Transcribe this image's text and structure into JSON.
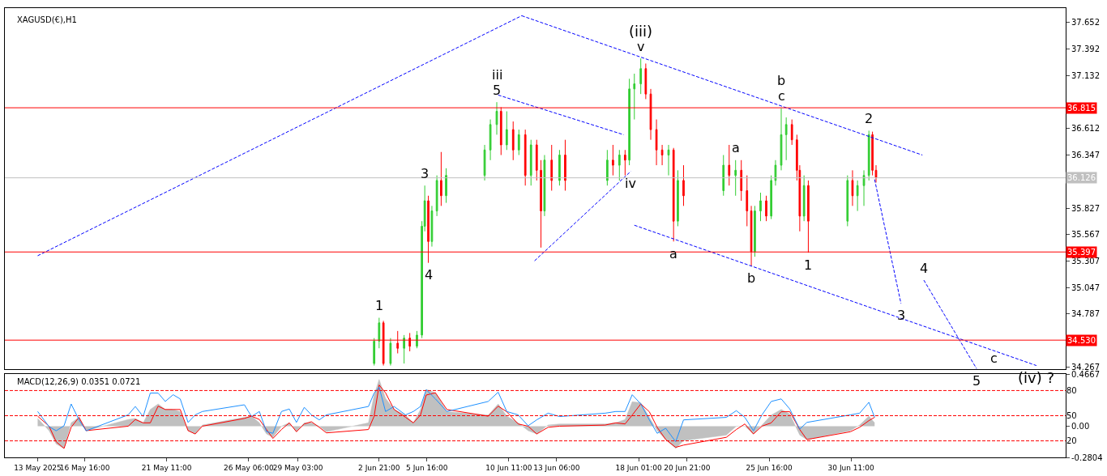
{
  "chart_data": [
    {
      "type": "candlestick",
      "title": "XAGUSD(€),H1",
      "tick_labels": "y",
      "x": [
        "2025-06-02T14:00",
        "2025-06-02T21:00",
        "2025-06-03T03:00",
        "2025-06-03T13:00",
        "2025-06-03T23:00",
        "2025-06-04T08:00",
        "2025-06-04T16:00",
        "2025-06-05T02:00",
        "2025-06-05T09:00",
        "2025-06-05T13:00",
        "2025-06-05T18:00",
        "2025-06-05T23:00",
        "2025-06-06T06:00",
        "2025-06-06T12:00",
        "2025-06-06T19:00",
        "2025-06-09T01:00",
        "2025-06-09T09:00",
        "2025-06-09T18:00",
        "2025-06-10T00:00",
        "2025-06-10T08:00",
        "2025-06-10T17:00",
        "2025-06-11T01:00",
        "2025-06-11T10:00",
        "2025-06-11T18:00",
        "2025-06-12T02:00",
        "2025-06-12T08:00",
        "2025-06-12T13:00",
        "2025-06-12T23:00",
        "2025-06-13T10:00",
        "2025-06-13T18:00",
        "2025-06-16T05:00",
        "2025-06-16T13:00",
        "2025-06-16T22:00",
        "2025-06-17T06:00",
        "2025-06-17T12:00",
        "2025-06-17T19:00",
        "2025-06-18T04:00",
        "2025-06-18T11:00",
        "2025-06-18T18:00",
        "2025-06-19T02:00",
        "2025-06-19T10:00",
        "2025-06-19T19:00",
        "2025-06-20T02:00",
        "2025-06-20T08:00",
        "2025-06-20T16:00",
        "2025-06-23T00:00",
        "2025-06-23T08:00",
        "2025-06-23T17:00",
        "2025-06-24T01:00",
        "2025-06-24T09:00",
        "2025-06-24T15:00",
        "2025-06-24T20:00",
        "2025-06-25T04:00",
        "2025-06-25T12:00",
        "2025-06-25T19:00",
        "2025-06-26T01:00",
        "2025-06-26T09:00",
        "2025-06-26T16:00",
        "2025-06-27T00:00",
        "2025-06-27T07:00",
        "2025-06-27T11:00",
        "2025-06-27T17:00",
        "2025-06-27T23:00",
        "2025-06-30T06:00",
        "2025-06-30T13:00",
        "2025-06-30T20:00",
        "2025-07-01T05:00",
        "2025-07-01T12:00",
        "2025-07-01T17:00",
        "2025-07-01T22:00"
      ],
      "ohlc": [
        [
          34.3,
          34.55,
          34.28,
          34.52
        ],
        [
          34.52,
          34.75,
          34.45,
          34.7
        ],
        [
          34.7,
          34.72,
          34.28,
          34.3
        ],
        [
          34.3,
          34.55,
          34.28,
          34.5
        ],
        [
          34.5,
          34.62,
          34.4,
          34.45
        ],
        [
          34.45,
          34.58,
          34.3,
          34.55
        ],
        [
          34.55,
          34.6,
          34.42,
          34.47
        ],
        [
          34.47,
          34.62,
          34.45,
          34.58
        ],
        [
          34.58,
          35.7,
          34.55,
          35.65
        ],
        [
          35.65,
          36.05,
          35.6,
          35.9
        ],
        [
          35.9,
          35.95,
          35.29,
          35.5
        ],
        [
          35.5,
          35.85,
          35.45,
          35.8
        ],
        [
          35.8,
          36.15,
          35.75,
          36.1
        ],
        [
          36.1,
          36.38,
          35.85,
          35.95
        ],
        [
          35.95,
          36.22,
          35.88,
          36.15
        ],
        [
          36.15,
          36.45,
          36.1,
          36.4
        ],
        [
          36.4,
          36.7,
          36.3,
          36.65
        ],
        [
          36.65,
          36.87,
          36.55,
          36.78
        ],
        [
          36.78,
          36.82,
          36.35,
          36.45
        ],
        [
          36.45,
          36.78,
          36.4,
          36.6
        ],
        [
          36.6,
          36.68,
          36.3,
          36.4
        ],
        [
          36.4,
          36.6,
          36.35,
          36.55
        ],
        [
          36.55,
          36.6,
          36.05,
          36.15
        ],
        [
          36.15,
          36.5,
          36.05,
          36.45
        ],
        [
          36.45,
          36.5,
          36.1,
          36.2
        ],
        [
          36.2,
          36.3,
          35.44,
          35.8
        ],
        [
          35.8,
          36.35,
          35.75,
          36.3
        ],
        [
          36.3,
          36.45,
          36.0,
          36.1
        ],
        [
          36.1,
          36.4,
          36.05,
          36.35
        ],
        [
          36.35,
          36.5,
          36.0,
          36.1
        ],
        [
          36.1,
          36.4,
          36.05,
          36.3
        ],
        [
          36.3,
          36.45,
          36.15,
          36.25
        ],
        [
          36.25,
          36.4,
          36.1,
          36.35
        ],
        [
          36.35,
          36.4,
          36.15,
          36.3
        ],
        [
          36.3,
          37.1,
          36.25,
          37.0
        ],
        [
          37.0,
          37.15,
          36.7,
          37.05
        ],
        [
          37.05,
          37.3,
          36.95,
          37.2
        ],
        [
          37.2,
          37.25,
          36.9,
          36.95
        ],
        [
          36.95,
          37.0,
          36.5,
          36.6
        ],
        [
          36.6,
          36.7,
          36.25,
          36.4
        ],
        [
          36.4,
          36.45,
          36.25,
          36.35
        ],
        [
          36.35,
          36.45,
          36.15,
          36.4
        ],
        [
          36.4,
          36.42,
          35.5,
          35.7
        ],
        [
          35.7,
          36.2,
          35.65,
          36.1
        ],
        [
          36.1,
          36.25,
          35.85,
          35.95
        ],
        [
          36.0,
          36.35,
          35.95,
          36.25
        ],
        [
          36.25,
          36.45,
          36.05,
          36.15
        ],
        [
          36.15,
          36.3,
          35.95,
          36.2
        ],
        [
          36.2,
          36.3,
          35.9,
          36.0
        ],
        [
          36.0,
          36.15,
          35.65,
          35.8
        ],
        [
          35.8,
          35.85,
          35.26,
          35.4
        ],
        [
          35.4,
          35.85,
          35.35,
          35.8
        ],
        [
          35.8,
          35.98,
          35.7,
          35.9
        ],
        [
          35.9,
          35.95,
          35.7,
          35.75
        ],
        [
          35.75,
          36.15,
          35.72,
          36.1
        ],
        [
          36.1,
          36.3,
          36.05,
          36.25
        ],
        [
          36.25,
          36.81,
          36.2,
          36.55
        ],
        [
          36.55,
          36.72,
          36.3,
          36.65
        ],
        [
          36.65,
          36.7,
          36.45,
          36.5
        ],
        [
          36.5,
          36.55,
          36.1,
          36.2
        ],
        [
          36.2,
          36.25,
          35.6,
          35.75
        ],
        [
          35.75,
          36.15,
          35.7,
          36.05
        ],
        [
          36.05,
          36.1,
          35.39,
          35.7
        ],
        [
          35.7,
          36.15,
          35.65,
          36.1
        ],
        [
          36.1,
          36.2,
          35.85,
          35.95
        ],
        [
          35.95,
          36.1,
          35.8,
          36.05
        ],
        [
          36.05,
          36.2,
          35.85,
          36.15
        ],
        [
          36.15,
          36.59,
          36.1,
          36.55
        ],
        [
          36.55,
          36.58,
          36.15,
          36.2
        ],
        [
          36.2,
          36.25,
          36.08,
          36.13
        ]
      ],
      "colors": [
        "#32cd32",
        "#32cd32",
        "#ff0000",
        "#32cd32",
        "#ff0000",
        "#32cd32",
        "#ff0000",
        "#32cd32",
        "#32cd32",
        "#32cd32",
        "#ff0000",
        "#32cd32",
        "#32cd32",
        "#ff0000",
        "#32cd32",
        "#32cd32",
        "#32cd32",
        "#32cd32",
        "#ff0000",
        "#32cd32",
        "#ff0000",
        "#32cd32",
        "#ff0000",
        "#32cd32",
        "#ff0000",
        "#ff0000",
        "#32cd32",
        "#ff0000",
        "#32cd32",
        "#ff0000",
        "#32cd32",
        "#ff0000",
        "#32cd32",
        "#ff0000",
        "#32cd32",
        "#32cd32",
        "#32cd32",
        "#ff0000",
        "#ff0000",
        "#ff0000",
        "#ff0000",
        "#32cd32",
        "#ff0000",
        "#32cd32",
        "#ff0000",
        "#32cd32",
        "#ff0000",
        "#32cd32",
        "#ff0000",
        "#ff0000",
        "#ff0000",
        "#32cd32",
        "#32cd32",
        "#ff0000",
        "#32cd32",
        "#32cd32",
        "#32cd32",
        "#32cd32",
        "#ff0000",
        "#ff0000",
        "#ff0000",
        "#32cd32",
        "#ff0000",
        "#32cd32",
        "#ff0000",
        "#32cd32",
        "#32cd32",
        "#32cd32",
        "#ff0000",
        "#ff0000"
      ],
      "series": [
        {
          "type": "line",
          "color": "#0000ff",
          "line_style": "dashed",
          "x": [
            "2025-05-13T22:00",
            "2025-06-11T05:00"
          ],
          "values": [
            35.36,
            37.72
          ]
        },
        {
          "type": "line",
          "color": "#0000ff",
          "line_style": "dashed",
          "x": [
            "2025-06-11T05:00",
            "2025-07-04T15:00"
          ],
          "values": [
            37.72,
            36.35
          ]
        },
        {
          "type": "line",
          "color": "#0000ff",
          "line_style": "dashed",
          "x": [
            "2025-06-09T20:00",
            "2025-06-17T04:00"
          ],
          "values": [
            36.94,
            36.55
          ]
        },
        {
          "type": "line",
          "color": "#0000ff",
          "line_style": "dashed",
          "x": [
            "2025-06-11T23:00",
            "2025-06-17T14:00"
          ],
          "values": [
            35.31,
            36.19
          ]
        },
        {
          "type": "line",
          "color": "#0000ff",
          "line_style": "dashed",
          "x": [
            "2025-06-17T19:00",
            "2025-07-11T07:00"
          ],
          "values": [
            35.66,
            34.28
          ]
        },
        {
          "type": "line",
          "color": "#0000ff",
          "line_style": "dashed",
          "x": [
            "2025-07-01T20:00",
            "2025-07-03T09:00"
          ],
          "values": [
            36.11,
            34.89
          ]
        },
        {
          "type": "line",
          "color": "#0000ff",
          "line_style": "dashed",
          "x": [
            "2025-07-04T17:00",
            "2025-07-07T19:00"
          ],
          "values": [
            35.12,
            34.25
          ]
        }
      ],
      "ref_lines": [
        {
          "axis": "y",
          "value": 36.815,
          "label": "36.815",
          "color": "#ff0000"
        },
        {
          "axis": "y",
          "value": 36.126,
          "label": "36.126",
          "color": "#c0c0c0"
        },
        {
          "axis": "y",
          "value": 35.397,
          "label": "35.397",
          "color": "#ff0000"
        },
        {
          "axis": "y",
          "value": 34.53,
          "label": "34.530",
          "color": "#ff0000"
        }
      ],
      "annotations": [
        {
          "text": "v",
          "x": "2025-06-18T04:00",
          "y": 37.3
        },
        {
          "text": "(iii)",
          "x": "2025-06-18T04:00",
          "y": 37.3
        },
        {
          "text": "5",
          "x": "2025-06-09T18:00",
          "y": 36.87
        },
        {
          "text": "iii",
          "x": "2025-06-09T18:00",
          "y": 36.87
        },
        {
          "text": "3",
          "x": "2025-06-05T13:00",
          "y": 36.05
        },
        {
          "text": "4",
          "x": "2025-06-05T18:00",
          "y": 35.29
        },
        {
          "text": "1",
          "x": "2025-06-02T21:00",
          "y": 34.75
        },
        {
          "text": "iv",
          "x": "2025-06-17T14:00",
          "y": 36.19
        },
        {
          "text": "c",
          "x": "2025-06-26T09:00",
          "y": 36.81
        },
        {
          "text": "b",
          "x": "2025-06-26T09:00",
          "y": 36.81
        },
        {
          "text": "a",
          "x": "2025-06-23T17:00",
          "y": 36.3
        },
        {
          "text": "2",
          "x": "2025-07-01T12:00",
          "y": 36.59
        },
        {
          "text": "a",
          "x": "2025-06-20T02:00",
          "y": 35.5
        },
        {
          "text": "b",
          "x": "2025-06-24T15:00",
          "y": 35.26
        },
        {
          "text": "1",
          "x": "2025-06-27T23:00",
          "y": 35.39
        },
        {
          "text": "4",
          "x": "2025-07-04T17:00",
          "y": 35.12
        },
        {
          "text": "3",
          "x": "2025-07-03T09:00",
          "y": 34.89
        },
        {
          "text": "5",
          "x": "2025-07-07T19:00",
          "y": 34.25
        },
        {
          "text": "c",
          "x": "2025-07-08T19:00",
          "y": 34.47
        },
        {
          "text": "(iv) ?",
          "x": "2025-07-11T07:00",
          "y": 34.28
        }
      ],
      "xlim": [
        "2025-05-12T00:00",
        "2025-07-13T00:00"
      ],
      "ylim": [
        34.243,
        37.795
      ],
      "yticks": [
        37.652,
        37.392,
        37.132,
        36.612,
        36.347,
        35.827,
        35.567,
        35.307,
        35.047,
        34.787,
        34.267
      ]
    },
    {
      "type": "line",
      "title": "MACD(12,26,9) 0.0351 0.0721",
      "x": [
        "2025-05-13T22:00",
        "2025-05-14T14:00",
        "2025-05-15T00:00",
        "2025-05-15T11:00",
        "2025-05-15T21:00",
        "2025-05-16T08:00",
        "2025-05-16T18:00",
        "2025-05-19T05:00",
        "2025-05-19T15:00",
        "2025-05-20T02:00",
        "2025-05-20T12:00",
        "2025-05-20T23:00",
        "2025-05-21T09:00",
        "2025-05-21T20:00",
        "2025-05-22T06:00",
        "2025-05-22T17:00",
        "2025-05-23T03:00",
        "2025-05-23T13:00",
        "2025-05-26T00:00",
        "2025-05-26T10:00",
        "2025-05-26T21:00",
        "2025-05-27T07:00",
        "2025-05-27T16:00",
        "2025-05-28T04:00",
        "2025-05-28T15:00",
        "2025-05-29T01:00",
        "2025-05-29T12:00",
        "2025-05-29T22:00",
        "2025-05-30T09:00",
        "2025-05-30T19:00",
        "2025-06-02T06:00",
        "2025-06-02T14:00",
        "2025-06-02T21:00",
        "2025-06-03T06:00",
        "2025-06-03T18:00",
        "2025-06-04T10:00",
        "2025-06-04T21:00",
        "2025-06-05T07:00",
        "2025-06-05T15:00",
        "2025-06-06T04:00",
        "2025-06-06T20:00",
        "2025-06-09T06:00",
        "2025-06-09T20:00",
        "2025-06-10T08:00",
        "2025-06-11T00:00",
        "2025-06-11T14:00",
        "2025-06-12T02:00",
        "2025-06-12T18:00",
        "2025-06-13T10:00",
        "2025-06-16T02:00",
        "2025-06-16T17:00",
        "2025-06-17T06:00",
        "2025-06-17T16:00",
        "2025-06-18T04:00",
        "2025-06-18T16:00",
        "2025-06-19T03:00",
        "2025-06-19T15:00",
        "2025-06-20T05:00",
        "2025-06-20T16:00",
        "2025-06-23T04:00",
        "2025-06-23T18:00",
        "2025-06-24T06:00",
        "2025-06-24T18:00",
        "2025-06-25T06:00",
        "2025-06-25T19:00",
        "2025-06-26T09:00",
        "2025-06-26T21:00",
        "2025-06-27T11:00",
        "2025-06-27T21:00",
        "2025-06-30T10:00",
        "2025-06-30T23:00",
        "2025-07-01T12:00",
        "2025-07-01T20:00"
      ],
      "series": [
        {
          "type": "area",
          "color": "#c0c0c0",
          "values": [
            0.07,
            -0.04,
            -0.16,
            -0.2,
            0.03,
            0.08,
            -0.04,
            0.06,
            0.07,
            0.03,
            0.15,
            0.2,
            0.15,
            0.15,
            0.13,
            -0.04,
            -0.07,
            0.01,
            0.08,
            0.09,
            0.03,
            -0.07,
            -0.1,
            0.0,
            0.03,
            -0.05,
            0.03,
            0.03,
            0.0,
            -0.05,
            0.03,
            0.28,
            0.42,
            0.25,
            0.15,
            0.1,
            0.03,
            0.15,
            0.33,
            0.3,
            0.13,
            0.1,
            0.2,
            0.09,
            0.03,
            -0.04,
            -0.07,
            0.01,
            0.02,
            0.02,
            0.03,
            0.06,
            0.22,
            0.21,
            0.08,
            -0.04,
            -0.12,
            -0.2,
            -0.13,
            -0.08,
            0.0,
            0.0,
            -0.07,
            0.01,
            0.1,
            0.15,
            0.11,
            -0.08,
            -0.12,
            -0.04,
            0.01,
            0.09,
            0.03
          ]
        },
        {
          "type": "line",
          "color": "#ff0000",
          "values": [
            0.09,
            0.0,
            -0.14,
            -0.2,
            -0.01,
            0.08,
            -0.04,
            0.0,
            0.06,
            0.03,
            0.03,
            0.18,
            0.15,
            0.15,
            0.15,
            -0.04,
            -0.07,
            0.0,
            0.07,
            0.09,
            0.06,
            -0.03,
            -0.11,
            -0.03,
            0.03,
            -0.05,
            0.02,
            0.04,
            -0.01,
            -0.06,
            -0.03,
            0.09,
            0.37,
            0.3,
            0.15,
            0.08,
            0.03,
            0.1,
            0.28,
            0.3,
            0.15,
            0.09,
            0.18,
            0.13,
            0.02,
            0.0,
            -0.07,
            -0.01,
            0.0,
            0.01,
            0.03,
            0.02,
            0.1,
            0.2,
            0.13,
            -0.01,
            -0.12,
            -0.19,
            -0.17,
            -0.1,
            -0.03,
            0.02,
            -0.07,
            0.0,
            0.03,
            0.13,
            0.13,
            -0.03,
            -0.12,
            -0.05,
            -0.01,
            0.05,
            0.08
          ]
        },
        {
          "type": "line",
          "color": "#1e90ff",
          "axis": "y2",
          "values": [
            55,
            37,
            32,
            38,
            64,
            45,
            32,
            51,
            61,
            49,
            77,
            77,
            67,
            75,
            70,
            42,
            51,
            55,
            63,
            49,
            55,
            31,
            29,
            55,
            58,
            42,
            60,
            51,
            45,
            51,
            61,
            77,
            84,
            55,
            61,
            51,
            55,
            61,
            81,
            70,
            55,
            67,
            78,
            55,
            51,
            38,
            45,
            53,
            49,
            53,
            55,
            55,
            75,
            64,
            45,
            29,
            35,
            19,
            45,
            48,
            56,
            48,
            32,
            51,
            67,
            70,
            58,
            34,
            42,
            51,
            53,
            66,
            48
          ]
        }
      ],
      "ref_lines": [
        {
          "axis": "y2",
          "value": 80,
          "color": "#ff0000",
          "line_style": "dashed"
        },
        {
          "axis": "y2",
          "value": 50,
          "color": "#ff0000",
          "line_style": "dashed"
        },
        {
          "axis": "y2",
          "value": 20,
          "color": "#ff0000",
          "line_style": "dashed"
        }
      ],
      "xlim": [
        "2025-05-12T00:00",
        "2025-07-13T00:00"
      ],
      "xticks": [
        {
          "value": "2025-05-13T22:00",
          "label": "13 May 2025"
        },
        {
          "value": "2025-05-16T16:00",
          "label": "16 May 16:00"
        },
        {
          "value": "2025-05-21T11:00",
          "label": "21 May 11:00"
        },
        {
          "value": "2025-05-26T06:00",
          "label": "26 May 06:00"
        },
        {
          "value": "2025-05-29T03:00",
          "label": "29 May 03:00"
        },
        {
          "value": "2025-06-02T21:00",
          "label": "2 Jun 21:00"
        },
        {
          "value": "2025-06-05T16:00",
          "label": "5 Jun 16:00"
        },
        {
          "value": "2025-06-10T11:00",
          "label": "10 Jun 11:00"
        },
        {
          "value": "2025-06-13T06:00",
          "label": "13 Jun 06:00"
        },
        {
          "value": "2025-06-18T01:00",
          "label": "18 Jun 01:00"
        },
        {
          "value": "2025-06-20T21:00",
          "label": "20 Jun 21:00"
        },
        {
          "value": "2025-06-25T16:00",
          "label": "25 Jun 16:00"
        },
        {
          "value": "2025-06-30T11:00",
          "label": "30 Jun 11:00"
        }
      ],
      "ylim": [
        -0.2804,
        0.4667
      ],
      "yticks": [
        0.4667,
        {
          "value": 0,
          "label": "0.00"
        },
        -0.2804
      ],
      "y2lim": [
        0.3,
        99.4
      ],
      "y2ticks": [
        80,
        50,
        20
      ]
    }
  ]
}
